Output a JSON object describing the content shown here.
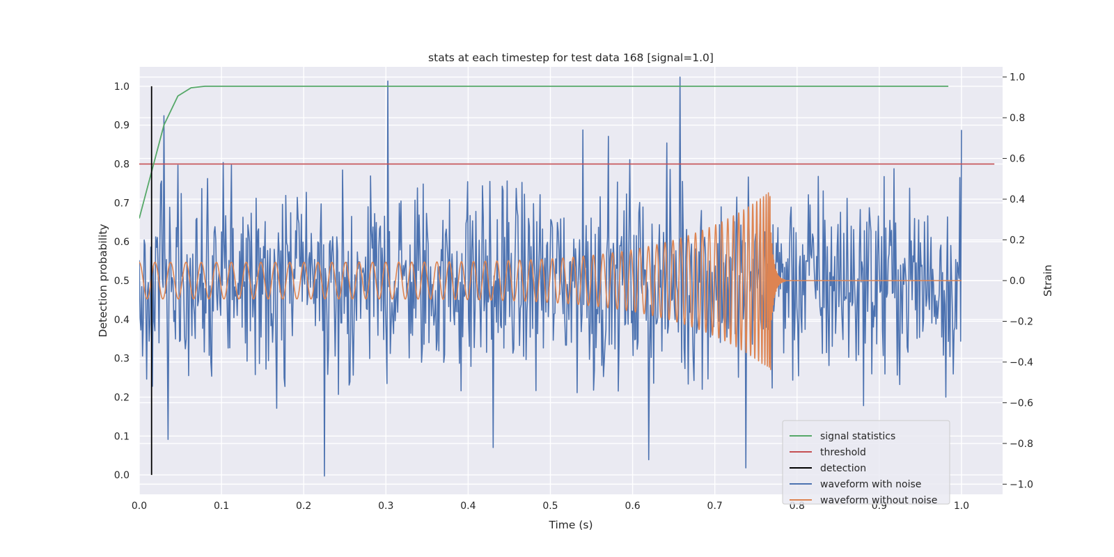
{
  "chart_data": {
    "type": "line",
    "title": "stats at each timestep for test data 168 [signal=1.0]",
    "xlabel": "Time (s)",
    "ylabel_left": "Detection probability",
    "ylabel_right": "Strain",
    "xlim": [
      0.0,
      1.05
    ],
    "ylim_left": [
      -0.05,
      1.05
    ],
    "ylim_right": [
      -1.05,
      1.05
    ],
    "x_ticks": [
      "0.0",
      "0.1",
      "0.2",
      "0.3",
      "0.4",
      "0.5",
      "0.6",
      "0.7",
      "0.8",
      "0.9",
      "1.0"
    ],
    "y_ticks_left": [
      "0.0",
      "0.1",
      "0.2",
      "0.3",
      "0.4",
      "0.5",
      "0.6",
      "0.7",
      "0.8",
      "0.9",
      "1.0"
    ],
    "y_ticks_right": [
      "−1.0",
      "−0.8",
      "−0.6",
      "−0.4",
      "−0.2",
      "0.0",
      "0.2",
      "0.4",
      "0.6",
      "0.8",
      "1.0"
    ],
    "grid": true,
    "legend_position": "lower-right",
    "colors": {
      "background": "#eaeaf2",
      "grid": "#ffffff",
      "signal_statistics": "#55a868",
      "threshold": "#c44e52",
      "detection": "#000000",
      "waveform_with_noise": "#4c72b0",
      "waveform_without_noise": "#dd8452"
    },
    "series": [
      {
        "name": "signal statistics",
        "axis": "left",
        "x": [
          0.0,
          0.015,
          0.03,
          0.047,
          0.063,
          0.08,
          0.1,
          0.2,
          0.4,
          0.6,
          0.8,
          0.984
        ],
        "y": [
          0.66,
          0.78,
          0.9,
          0.975,
          0.996,
          1.0,
          1.0,
          1.0,
          1.0,
          1.0,
          1.0,
          1.0
        ]
      },
      {
        "name": "threshold",
        "axis": "left",
        "x": [
          0.0,
          1.04
        ],
        "y": [
          0.8,
          0.8
        ]
      },
      {
        "name": "detection",
        "axis": "left",
        "x": [
          0.015,
          0.015
        ],
        "y": [
          0.0,
          1.0
        ]
      },
      {
        "name": "waveform with noise",
        "axis": "right",
        "description": "noisy strain series, ~1000 samples over 0.0-1.0 s, values between -0.96 and 1.0",
        "x_range": [
          0.0,
          1.0
        ],
        "y_min": -0.96,
        "y_max": 1.0,
        "sample_points": [
          {
            "x": 0.0,
            "y": 0.1
          },
          {
            "x": 0.03,
            "y": 0.81
          },
          {
            "x": 0.035,
            "y": -0.78
          },
          {
            "x": 0.225,
            "y": -0.96
          },
          {
            "x": 0.302,
            "y": 0.98
          },
          {
            "x": 0.43,
            "y": -0.82
          },
          {
            "x": 0.54,
            "y": 0.74
          },
          {
            "x": 0.62,
            "y": -0.88
          },
          {
            "x": 0.658,
            "y": 1.0
          },
          {
            "x": 0.738,
            "y": -0.92
          },
          {
            "x": 1.0,
            "y": 0.74
          }
        ]
      },
      {
        "name": "waveform without noise",
        "axis": "right",
        "description": "chirp: oscillation of amplitude ~0.09 rising to ~0.45 with increasing frequency, merger near t=0.768 s, ringdown then zero until 1.0 s",
        "x_range": [
          0.0,
          1.0
        ],
        "merger_time": 0.768,
        "peak_strain": 0.44,
        "initial_amplitude": 0.09
      }
    ],
    "legend": [
      "signal statistics",
      "threshold",
      "detection",
      "waveform with noise",
      "waveform without noise"
    ]
  }
}
